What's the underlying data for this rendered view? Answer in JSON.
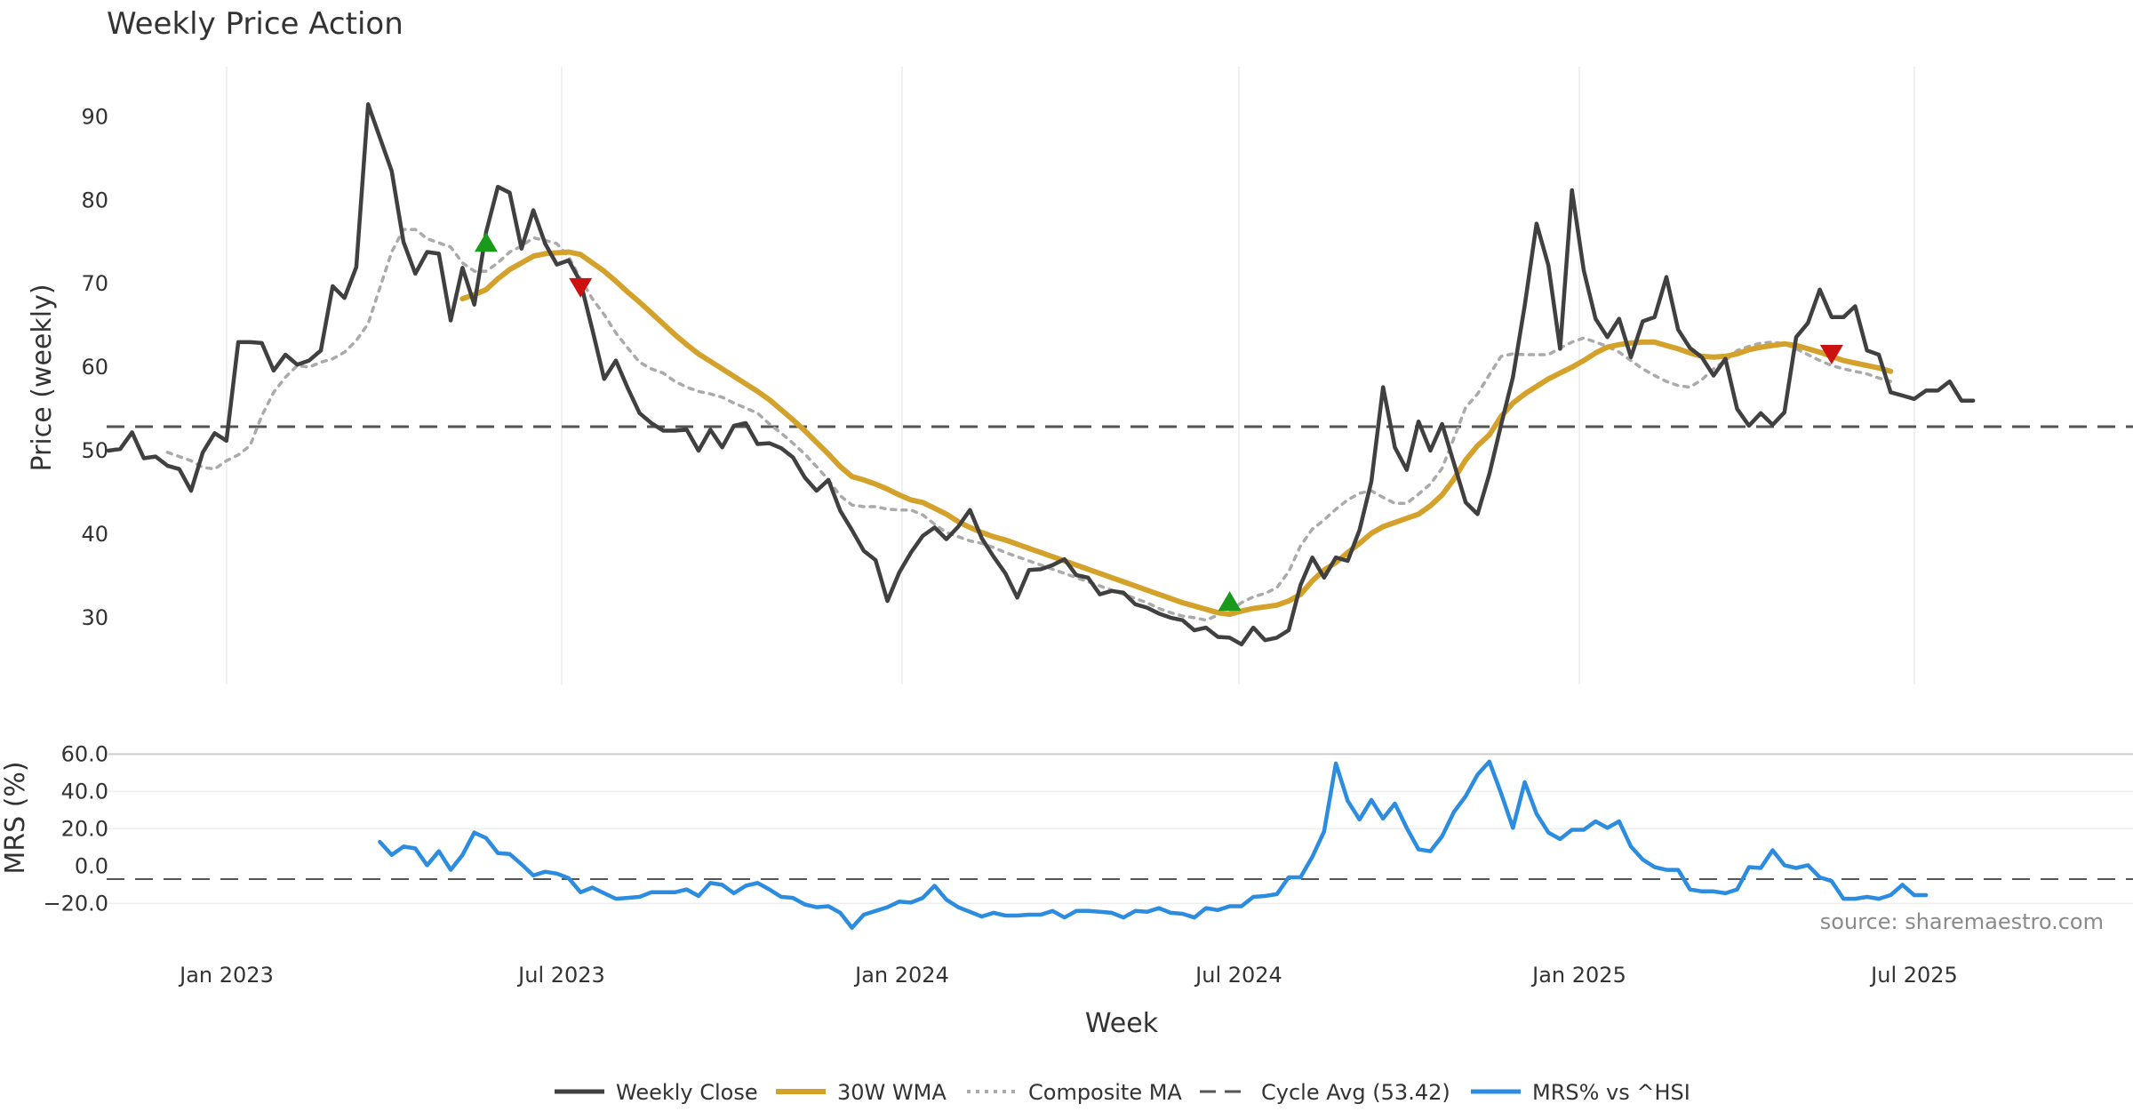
{
  "chart_data": {
    "type": "line",
    "title": "Weekly Price Action",
    "watermark": "source: sharemaestro.com",
    "xlabel": "Week",
    "x_ticks": [
      "Jan 2023",
      "Jul 2023",
      "Jan 2024",
      "Jul 2024",
      "Jan 2025",
      "Jul 2025"
    ],
    "price_panel": {
      "ylabel": "Price (weekly)",
      "ylim": [
        22,
        96
      ],
      "yticks": [
        "30",
        "40",
        "50",
        "60",
        "70",
        "80",
        "90"
      ],
      "cycle_avg": 53.42,
      "series": [
        {
          "name": "Weekly Close",
          "color": "#404040",
          "style": "solid",
          "values": [
            50,
            50.2,
            52.2,
            49.1,
            49.3,
            48.2,
            47.8,
            45.2,
            49.8,
            52.1,
            51.2,
            63,
            63,
            62.9,
            59.6,
            61.5,
            60.3,
            60.8,
            62,
            69.7,
            68.3,
            72,
            91.5,
            87.5,
            83.5,
            75,
            71.2,
            73.8,
            73.6,
            65.6,
            71.9,
            67.5,
            76.2,
            81.6,
            80.9,
            74.2,
            78.8,
            74.8,
            72.3,
            72.8,
            70.2,
            64.5,
            58.6,
            60.8,
            57.5,
            54.5,
            53.3,
            52.4,
            52.4,
            52.5,
            50,
            52.5,
            50.4,
            53,
            53.3,
            50.8,
            50.9,
            50.3,
            49.2,
            46.8,
            45.2,
            46.5,
            42.8,
            40.5,
            38,
            36.9,
            32,
            35.4,
            37.8,
            39.8,
            40.8,
            39.4,
            40.9,
            42.9,
            39.5,
            37.3,
            35.3,
            32.4,
            35.7,
            35.8,
            36.3,
            37,
            35.1,
            34.8,
            32.8,
            33.2,
            33,
            31.6,
            31.2,
            30.5,
            30,
            29.7,
            28.5,
            28.8,
            27.7,
            27.6,
            26.8,
            28.8,
            27.3,
            27.6,
            28.5,
            33.9,
            37.2,
            34.8,
            37.2,
            36.8,
            40.5,
            46.3,
            57.6,
            50.4,
            47.7,
            53.5,
            50,
            53.2,
            48.5,
            43.8,
            42.4,
            47.2,
            53.1,
            58.8,
            67.4,
            77.2,
            72.2,
            62.2,
            81.2,
            71.6,
            65.8,
            63.6,
            65.8,
            61.2,
            65.5,
            66,
            70.8,
            64.5,
            62.3,
            61.2,
            59,
            61,
            55,
            53,
            54.5,
            53.1,
            54.6,
            63.6,
            65.3,
            69.3,
            66,
            66,
            67.3,
            62,
            61.5,
            57,
            56.6,
            56.2,
            57.2,
            57.2,
            58.3,
            56,
            56
          ]
        },
        {
          "name": "30W WMA",
          "color": "#D4A22A",
          "style": "solid",
          "start": 30,
          "values": [
            68.2,
            68.7,
            69.3,
            70.6,
            71.7,
            72.5,
            73.3,
            73.6,
            73.7,
            73.8,
            73.5,
            72.5,
            71.5,
            70.3,
            69,
            67.8,
            66.5,
            65.2,
            63.9,
            62.7,
            61.6,
            60.7,
            59.8,
            58.9,
            58,
            57.1,
            56.1,
            54.9,
            53.7,
            52.4,
            51,
            49.6,
            48.1,
            46.9,
            46.5,
            46,
            45.4,
            44.7,
            44.1,
            43.8,
            43.1,
            42.4,
            41.5,
            40.8,
            40.2,
            39.7,
            39.3,
            38.8,
            38.3,
            37.8,
            37.3,
            36.8,
            36.3,
            35.8,
            35.3,
            34.8,
            34.3,
            33.8,
            33.3,
            32.8,
            32.3,
            31.8,
            31.4,
            31,
            30.6,
            30.4,
            30.8,
            31.1,
            31.3,
            31.5,
            32,
            32.8,
            34.4,
            35.7,
            36.6,
            37.8,
            38.9,
            40.1,
            40.9,
            41.4,
            41.9,
            42.4,
            43.4,
            44.7,
            46.6,
            48.9,
            50.6,
            51.9,
            54.1,
            55.7,
            56.8,
            57.7,
            58.6,
            59.3,
            60,
            60.8,
            61.7,
            62.4,
            62.7,
            62.9,
            63,
            63,
            62.6,
            62.2,
            61.7,
            61.3,
            61.2,
            61.3,
            61.6,
            62.1,
            62.4,
            62.6,
            62.8,
            62.6,
            62.2,
            61.8,
            61.3,
            60.8,
            60.5,
            60.2,
            59.9,
            59.5
          ]
        },
        {
          "name": "Composite MA",
          "color": "#AAAAAA",
          "style": "dotted",
          "start": 5,
          "values": [
            49.8,
            49.3,
            48.8,
            48,
            47.8,
            48.8,
            49.5,
            50.6,
            54.2,
            57,
            58.8,
            60.2,
            60,
            60.6,
            61,
            61.8,
            63.2,
            65.2,
            69.5,
            73.8,
            76.5,
            76.5,
            75.4,
            74.9,
            74.4,
            72.5,
            71.5,
            71.5,
            72.5,
            73.8,
            74.5,
            75.5,
            75.2,
            74.8,
            73.2,
            70.6,
            68.2,
            66.3,
            64.1,
            62.3,
            60.6,
            59.8,
            59.3,
            58.3,
            57.6,
            57.1,
            56.8,
            56.4,
            55.7,
            55.1,
            54.5,
            53.2,
            52.1,
            50.9,
            49.6,
            48.1,
            46.5,
            44.6,
            43.5,
            43.3,
            43.3,
            43,
            42.9,
            42.9,
            42.3,
            41.2,
            40.2,
            39.7,
            39.2,
            38.9,
            38.4,
            37.8,
            37.3,
            36.8,
            36.3,
            35.8,
            35.3,
            34.8,
            34.3,
            33.8,
            33.3,
            32.8,
            32.3,
            31.8,
            31.1,
            30.6,
            30.2,
            30,
            29.7,
            30.3,
            30.8,
            31.8,
            32.5,
            32.9,
            33.6,
            35.5,
            38.6,
            40.6,
            41.7,
            43,
            44.1,
            44.9,
            45.2,
            44.4,
            43.7,
            43.7,
            44.8,
            46,
            47.9,
            51.5,
            55.2,
            56.8,
            59.1,
            61.3,
            61.6,
            61.5,
            61.5,
            61.5,
            62.3,
            63,
            63.5,
            63,
            62.5,
            61.8,
            60.8,
            59.8,
            59,
            58.3,
            57.8,
            57.6,
            58.5,
            59.8,
            60.8,
            62,
            62.5,
            62.9,
            63,
            62.8,
            62.2,
            61.5,
            60.8,
            60.2,
            59.8,
            59.5,
            59.2,
            58.7,
            58.3
          ]
        }
      ],
      "markers": [
        {
          "type": "buy",
          "color": "#1a9a1a",
          "index": 32,
          "value": 75
        },
        {
          "type": "sell",
          "color": "#cc1111",
          "index": 40,
          "value": 69.5
        },
        {
          "type": "buy",
          "color": "#1a9a1a",
          "index": 95,
          "value": 32
        },
        {
          "type": "sell",
          "color": "#cc1111",
          "index": 146,
          "value": 61.5
        }
      ]
    },
    "mrs_panel": {
      "ylabel": "MRS (%)",
      "ylim": [
        -36,
        64
      ],
      "yticks": [
        "60.0",
        "40.0",
        "20.0",
        "0.0",
        "−20.0"
      ],
      "series": [
        {
          "name": "MRS% vs ^HSI",
          "color": "#2B8CE0",
          "style": "solid",
          "start": 23,
          "values": [
            13,
            6,
            10.5,
            9.5,
            0.5,
            8,
            -2,
            6,
            18,
            15,
            7,
            6.5,
            1,
            -5,
            -3,
            -4,
            -6.5,
            -14,
            -11.5,
            -14.5,
            -17.5,
            -17,
            -16.5,
            -14,
            -14,
            -14,
            -12.5,
            -16,
            -9,
            -10,
            -14.5,
            -10.5,
            -9,
            -12.5,
            -16.5,
            -17,
            -20.5,
            -22,
            -21.5,
            -25,
            -33,
            -26,
            -24,
            -22,
            -19,
            -19.5,
            -17,
            -10.5,
            -18,
            -22,
            -24.5,
            -27,
            -25,
            -26.5,
            -26.5,
            -26,
            -26,
            -24,
            -27.5,
            -24,
            -24,
            -24.5,
            -25,
            -27.5,
            -24,
            -24.5,
            -22.5,
            -25,
            -25.5,
            -27.5,
            -22.5,
            -23.5,
            -21.5,
            -21.5,
            -16.5,
            -16,
            -15,
            -6,
            -6,
            5,
            18.5,
            55,
            35,
            25,
            35.5,
            25.5,
            33.5,
            20.5,
            9,
            8,
            16,
            29,
            37.5,
            49,
            56,
            39,
            20.5,
            45,
            28,
            18,
            14.5,
            19.5,
            19.5,
            24,
            20.5,
            24,
            10.5,
            3.5,
            -0.5,
            -2,
            -2,
            -12.5,
            -13.5,
            -13.5,
            -14.5,
            -12.5,
            -0.5,
            -1,
            8.5,
            0.5,
            -1,
            0.5,
            -6,
            -8,
            -17.5,
            -17.5,
            -16.5,
            -17.5,
            -15.5,
            -10,
            -15.5,
            -15.5
          ]
        }
      ]
    },
    "legend": [
      "Weekly Close",
      "30W WMA",
      "Composite MA",
      "Cycle Avg (53.42)",
      "MRS% vs ^HSI"
    ],
    "legend_position": "bottom-center"
  }
}
